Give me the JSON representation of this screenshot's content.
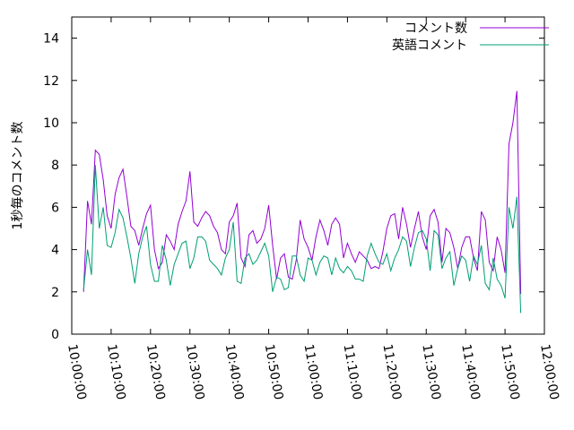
{
  "chart_data": {
    "type": "line",
    "y_label": "1秒毎のコメント数",
    "x": [
      "10:03:00",
      "10:04:00",
      "10:05:00",
      "10:06:00",
      "10:07:00",
      "10:08:00",
      "10:09:00",
      "10:10:00",
      "10:11:00",
      "10:12:00",
      "10:13:00",
      "10:14:00",
      "10:15:00",
      "10:16:00",
      "10:17:00",
      "10:18:00",
      "10:19:00",
      "10:20:00",
      "10:21:00",
      "10:22:00",
      "10:23:00",
      "10:24:00",
      "10:25:00",
      "10:26:00",
      "10:27:00",
      "10:28:00",
      "10:29:00",
      "10:30:00",
      "10:31:00",
      "10:32:00",
      "10:33:00",
      "10:34:00",
      "10:35:00",
      "10:36:00",
      "10:37:00",
      "10:38:00",
      "10:39:00",
      "10:40:00",
      "10:41:00",
      "10:42:00",
      "10:43:00",
      "10:44:00",
      "10:45:00",
      "10:46:00",
      "10:47:00",
      "10:48:00",
      "10:49:00",
      "10:50:00",
      "10:51:00",
      "10:52:00",
      "10:53:00",
      "10:54:00",
      "10:55:00",
      "10:56:00",
      "10:57:00",
      "10:58:00",
      "10:59:00",
      "11:00:00",
      "11:01:00",
      "11:02:00",
      "11:03:00",
      "11:04:00",
      "11:05:00",
      "11:06:00",
      "11:07:00",
      "11:08:00",
      "11:09:00",
      "11:10:00",
      "11:11:00",
      "11:12:00",
      "11:13:00",
      "11:14:00",
      "11:15:00",
      "11:16:00",
      "11:17:00",
      "11:18:00",
      "11:19:00",
      "11:20:00",
      "11:21:00",
      "11:22:00",
      "11:23:00",
      "11:24:00",
      "11:25:00",
      "11:26:00",
      "11:27:00",
      "11:28:00",
      "11:29:00",
      "11:30:00",
      "11:31:00",
      "11:32:00",
      "11:33:00",
      "11:34:00",
      "11:35:00",
      "11:36:00",
      "11:37:00",
      "11:38:00",
      "11:39:00",
      "11:40:00",
      "11:41:00",
      "11:42:00",
      "11:43:00",
      "11:44:00",
      "11:45:00",
      "11:46:00",
      "11:47:00",
      "11:48:00",
      "11:49:00",
      "11:50:00",
      "11:51:00",
      "11:52:00",
      "11:53:00",
      "11:54:00"
    ],
    "series": [
      {
        "name": "コメント数",
        "color": "#9400d3",
        "values": [
          2.0,
          6.3,
          5.2,
          8.7,
          8.5,
          7.3,
          5.6,
          5.0,
          6.6,
          7.4,
          7.8,
          6.5,
          5.1,
          4.9,
          4.2,
          5.0,
          5.7,
          6.1,
          4.0,
          3.1,
          3.4,
          4.7,
          4.4,
          4.0,
          5.2,
          5.8,
          6.3,
          7.7,
          5.3,
          5.1,
          5.5,
          5.8,
          5.6,
          5.1,
          4.8,
          4.0,
          3.8,
          5.3,
          5.6,
          6.2,
          3.6,
          3.2,
          4.7,
          4.9,
          4.3,
          4.5,
          5.0,
          6.1,
          4.2,
          2.6,
          3.6,
          3.8,
          2.7,
          2.6,
          3.5,
          5.4,
          4.5,
          4.1,
          3.5,
          4.6,
          5.4,
          4.9,
          4.2,
          5.2,
          5.5,
          5.2,
          3.6,
          4.3,
          3.8,
          3.4,
          3.9,
          3.7,
          3.5,
          3.1,
          3.2,
          3.1,
          3.9,
          5.0,
          5.6,
          5.7,
          4.5,
          6.0,
          5.2,
          4.1,
          5.0,
          5.8,
          4.6,
          4.0,
          5.6,
          5.9,
          5.3,
          3.4,
          5.0,
          4.8,
          4.1,
          3.1,
          4.1,
          4.6,
          4.6,
          3.6,
          3.0,
          5.8,
          5.4,
          3.4,
          3.0,
          4.6,
          4.0,
          2.9,
          9.0,
          10.0,
          11.5,
          1.9
        ]
      },
      {
        "name": "英語コメント",
        "color": "#009e73",
        "values": [
          2.1,
          4.0,
          2.8,
          8.0,
          5.0,
          6.0,
          4.2,
          4.1,
          4.8,
          5.9,
          5.5,
          4.6,
          3.6,
          2.4,
          3.8,
          4.6,
          5.1,
          3.3,
          2.5,
          2.5,
          4.2,
          3.5,
          2.3,
          3.3,
          3.8,
          4.3,
          4.4,
          3.1,
          3.6,
          4.6,
          4.6,
          4.4,
          3.5,
          3.3,
          3.1,
          2.8,
          3.6,
          4.0,
          5.3,
          2.5,
          2.4,
          3.6,
          3.8,
          3.3,
          3.5,
          3.9,
          4.3,
          3.7,
          2.0,
          2.7,
          2.6,
          2.1,
          2.2,
          3.7,
          3.7,
          2.8,
          2.5,
          3.6,
          3.5,
          2.8,
          3.4,
          3.7,
          3.6,
          2.8,
          3.6,
          3.1,
          2.9,
          3.2,
          3.0,
          2.6,
          2.6,
          2.5,
          3.7,
          4.3,
          3.8,
          3.4,
          3.3,
          3.8,
          3.0,
          3.6,
          4.0,
          4.6,
          4.4,
          3.2,
          4.1,
          4.8,
          4.9,
          4.5,
          3.0,
          4.9,
          4.7,
          3.1,
          3.6,
          3.9,
          2.3,
          3.1,
          3.7,
          3.5,
          2.5,
          3.7,
          3.3,
          4.2,
          2.4,
          2.1,
          3.6,
          2.6,
          2.3,
          1.7,
          6.0,
          5.0,
          6.5,
          1.0
        ]
      }
    ],
    "xlim": [
      "10:00:00",
      "12:00:00"
    ],
    "xticks": [
      "10:00:00",
      "10:10:00",
      "10:20:00",
      "10:30:00",
      "10:40:00",
      "10:50:00",
      "11:00:00",
      "11:10:00",
      "11:20:00",
      "11:30:00",
      "11:40:00",
      "11:50:00",
      "12:00:00"
    ],
    "ylim": [
      0,
      15
    ],
    "yticks": [
      0,
      2,
      4,
      6,
      8,
      10,
      12,
      14
    ],
    "legend": "top-right",
    "grid": false
  }
}
